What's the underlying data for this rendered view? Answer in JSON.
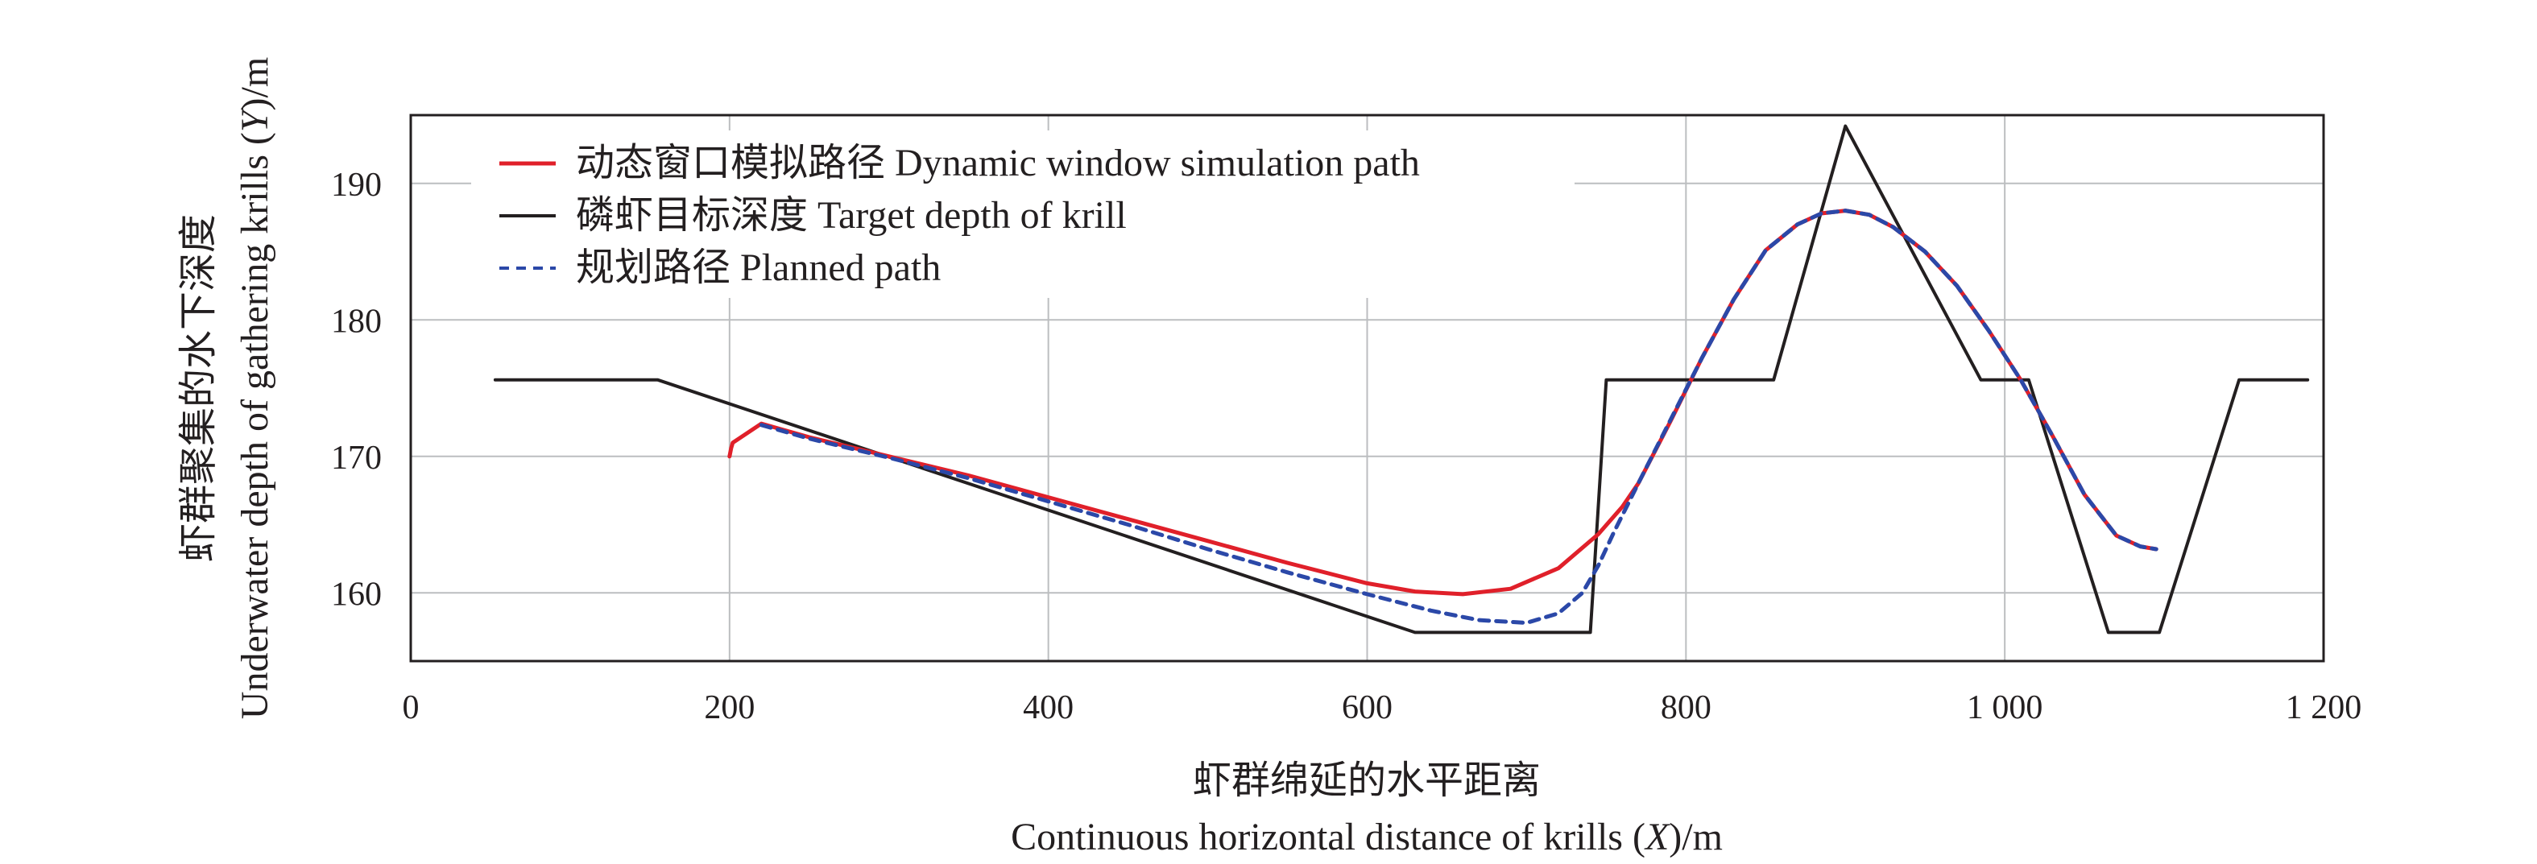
{
  "chart_data": {
    "type": "line",
    "xlabel_cn": "虾群绵延的水平距离",
    "xlabel_en": "Continuous horizontal distance of krills (",
    "xlabel_var": "X",
    "xlabel_unit": ")/m",
    "ylabel_cn": "虾群聚集的水下深度",
    "ylabel_en": "Underwater depth of gathering krills (",
    "ylabel_var": "Y",
    "ylabel_unit": ")/m",
    "xlim": [
      0,
      1200
    ],
    "ylim": [
      155,
      195
    ],
    "xticks": [
      0,
      200,
      400,
      600,
      800,
      1000,
      1200
    ],
    "xtick_labels": [
      "0",
      "200",
      "400",
      "600",
      "800",
      "1 000",
      "1 200"
    ],
    "yticks": [
      160,
      170,
      180,
      190
    ],
    "ytick_labels": [
      "160",
      "170",
      "180",
      "190"
    ],
    "grid": true,
    "legend_position": "top-left",
    "series": [
      {
        "name": "动态窗口模拟路径 Dynamic window simulation path",
        "color": "#e0202a",
        "dash": "solid",
        "x": [
          200,
          201,
          202,
          220,
          250,
          300,
          350,
          400,
          450,
          500,
          550,
          600,
          630,
          660,
          690,
          720,
          745,
          760,
          770,
          790,
          810,
          830,
          850,
          870,
          885,
          900,
          915,
          930,
          950,
          970,
          990,
          1010,
          1030,
          1050,
          1070,
          1085,
          1095
        ],
        "y": [
          170.0,
          170.6,
          171.0,
          172.4,
          171.4,
          170.0,
          168.6,
          167.0,
          165.4,
          163.8,
          162.2,
          160.7,
          160.1,
          159.9,
          160.3,
          161.8,
          164.3,
          166.3,
          168.0,
          172.5,
          177.2,
          181.5,
          185.1,
          187.0,
          187.8,
          188.0,
          187.7,
          186.8,
          185.0,
          182.5,
          179.2,
          175.6,
          171.5,
          167.2,
          164.2,
          163.4,
          163.2
        ]
      },
      {
        "name": "磷虾目标深度 Target depth of krill",
        "color": "#231f20",
        "dash": "solid",
        "x": [
          53,
          155,
          630,
          740,
          750,
          855,
          900,
          985,
          1015,
          1065,
          1097,
          1147,
          1190
        ],
        "y": [
          175.6,
          175.6,
          157.1,
          157.1,
          175.6,
          175.6,
          194.2,
          175.6,
          175.6,
          157.1,
          157.1,
          175.6,
          175.6
        ]
      },
      {
        "name": "规划路径 Planned path",
        "color": "#2b48a8",
        "dash": "dashed",
        "x": [
          220,
          250,
          300,
          350,
          400,
          450,
          500,
          550,
          600,
          640,
          670,
          700,
          720,
          735,
          745,
          755,
          770,
          790,
          810,
          830,
          850,
          870,
          885,
          900,
          915,
          930,
          950,
          970,
          990,
          1010,
          1030,
          1050,
          1070,
          1085,
          1095
        ],
        "y": [
          172.3,
          171.3,
          169.9,
          168.4,
          166.7,
          165.0,
          163.2,
          161.5,
          159.9,
          158.7,
          158.0,
          157.8,
          158.5,
          160.0,
          162.0,
          164.5,
          168.0,
          172.6,
          177.2,
          181.5,
          185.1,
          187.0,
          187.8,
          188.0,
          187.7,
          186.8,
          185.0,
          182.5,
          179.2,
          175.6,
          171.5,
          167.2,
          164.2,
          163.4,
          163.2
        ]
      }
    ]
  }
}
